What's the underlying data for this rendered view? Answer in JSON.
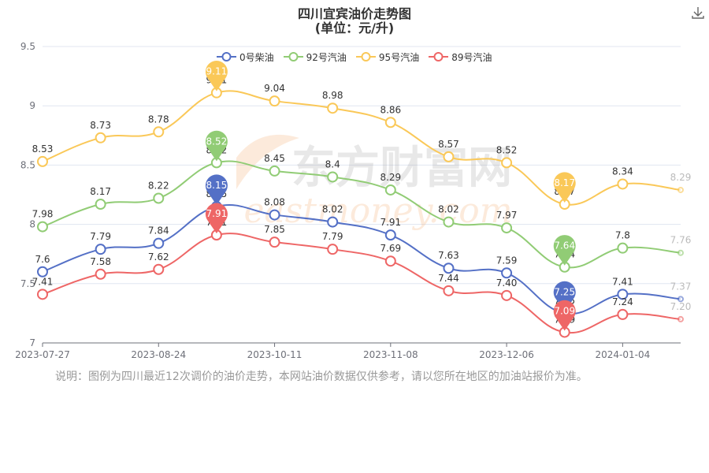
{
  "header": {
    "title_line1": "四川宜宾油价走势图",
    "title_line2": "(单位：元/升)"
  },
  "toolbar": {
    "download_icon": "download-icon"
  },
  "watermark": {
    "text_cn": "东方财富网",
    "text_en": "eastmoney.com"
  },
  "note": "说明：图例为四川最近12次调价的油价走势，本网站油价数据仅供参考，请以您所在地区的加油站报价为准。",
  "chart_data": {
    "type": "line",
    "title": "四川宜宾油价走势图",
    "subtitle": "(单位：元/升)",
    "xlabel": "",
    "ylabel": "",
    "x_ticks": [
      "2023-07-27",
      "2023-08-24",
      "2023-10-11",
      "2023-11-08",
      "2023-12-06",
      "2024-01-04"
    ],
    "y_ticks": [
      "7",
      "7.5",
      "8",
      "8.5",
      "9",
      "9.5"
    ],
    "ylim": [
      7,
      9.5
    ],
    "grid": true,
    "legend": "top-center",
    "point_count": 12,
    "series": [
      {
        "name": "0号柴油",
        "color": "#5470c6",
        "values": [
          7.6,
          7.79,
          7.84,
          8.15,
          8.08,
          8.02,
          7.91,
          7.63,
          7.59,
          7.25,
          7.41,
          7.37
        ],
        "labels": [
          "7.6",
          "7.79",
          "7.84",
          "8.15",
          "8.08",
          "8.02",
          "7.91",
          "7.63",
          "7.59",
          "7.25",
          "7.41",
          "7.37"
        ],
        "max_index": 3,
        "min_index": 9
      },
      {
        "name": "92号汽油",
        "color": "#91cc75",
        "values": [
          7.98,
          8.17,
          8.22,
          8.52,
          8.45,
          8.4,
          8.29,
          8.02,
          7.97,
          7.64,
          7.8,
          7.76
        ],
        "labels": [
          "7.98",
          "8.17",
          "8.22",
          "8.52",
          "8.45",
          "8.4",
          "8.29",
          "8.02",
          "7.97",
          "7.64",
          "7.8",
          "7.76"
        ],
        "max_index": 3,
        "min_index": 9
      },
      {
        "name": "95号汽油",
        "color": "#fac858",
        "values": [
          8.53,
          8.73,
          8.78,
          9.11,
          9.04,
          8.98,
          8.86,
          8.57,
          8.52,
          8.17,
          8.34,
          8.29
        ],
        "labels": [
          "8.53",
          "8.73",
          "8.78",
          "9.11",
          "9.04",
          "8.98",
          "8.86",
          "8.57",
          "8.52",
          "8.17",
          "8.34",
          "8.29"
        ],
        "max_index": 3,
        "min_index": 9
      },
      {
        "name": "89号汽油",
        "color": "#ee6666",
        "values": [
          7.41,
          7.58,
          7.62,
          7.91,
          7.85,
          7.79,
          7.69,
          7.44,
          7.4,
          7.09,
          7.24,
          7.2
        ],
        "labels": [
          "7.41",
          "7.58",
          "7.62",
          "7.91",
          "7.85",
          "7.79",
          "7.69",
          "7.44",
          "7.40",
          "7.09",
          "7.24",
          "7.20"
        ],
        "max_index": 3,
        "min_index": 9
      }
    ]
  }
}
